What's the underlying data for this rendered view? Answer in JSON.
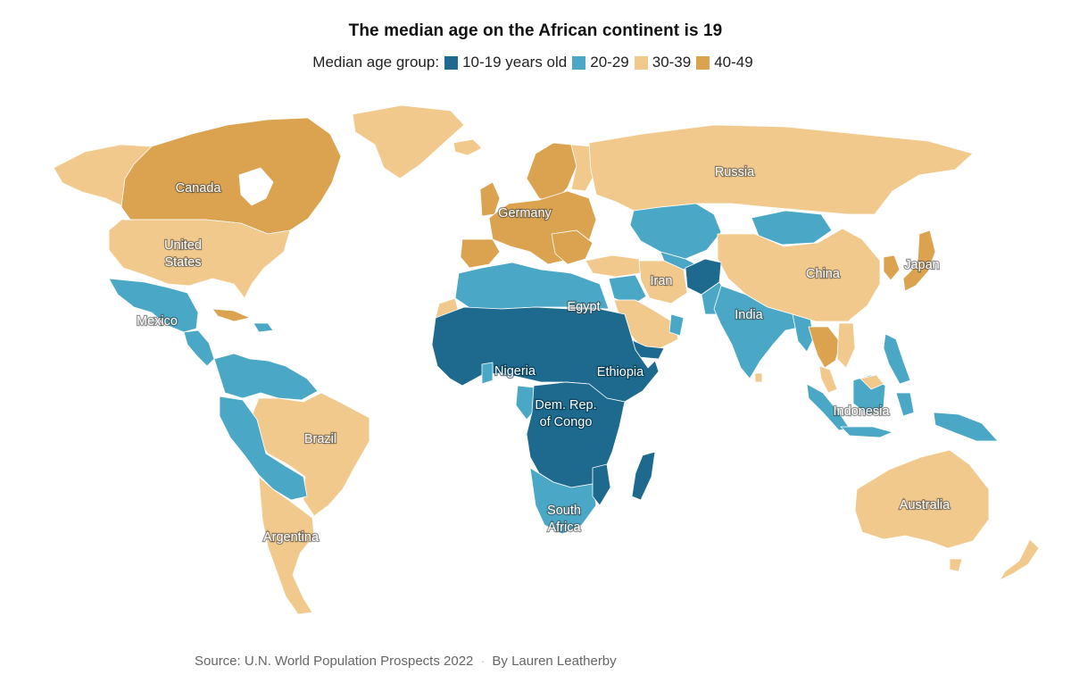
{
  "title": "The median age on the African continent is 19",
  "legend": {
    "label": "Median age group:",
    "items": [
      {
        "label": "10-19 years old",
        "color": "#1d6a8e"
      },
      {
        "label": "20-29",
        "color": "#4aa8c6"
      },
      {
        "label": "30-39",
        "color": "#f2c98d"
      },
      {
        "label": "40-49",
        "color": "#dba24f"
      }
    ]
  },
  "map_labels": {
    "canada": "Canada",
    "united_states_1": "United",
    "united_states_2": "States",
    "mexico": "Mexico",
    "brazil": "Brazil",
    "argentina": "Argentina",
    "germany": "Germany",
    "russia": "Russia",
    "egypt": "Egypt",
    "nigeria": "Nigeria",
    "ethiopia": "Ethiopia",
    "drc_1": "Dem. Rep.",
    "drc_2": "of Congo",
    "south_africa_1": "South",
    "south_africa_2": "Africa",
    "iran": "Iran",
    "india": "India",
    "china": "China",
    "japan": "Japan",
    "indonesia": "Indonesia",
    "australia": "Australia"
  },
  "source": "Source: U.N. World Population Prospects 2022",
  "separator": "·",
  "byline": "By Lauren Leatherby"
}
